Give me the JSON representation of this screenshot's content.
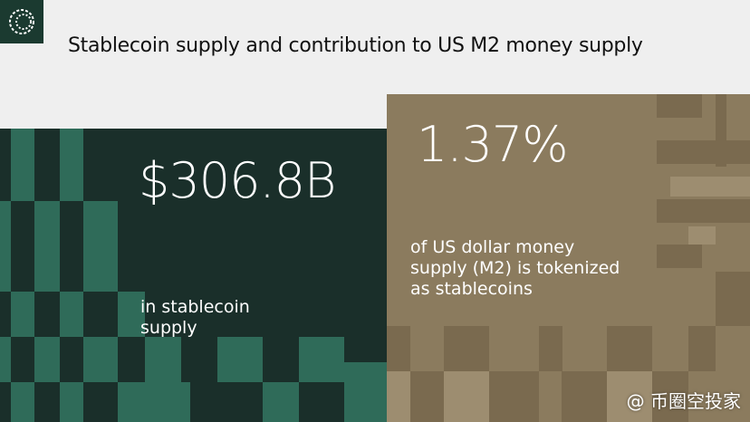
{
  "header": {
    "title": "Stablecoin supply and contribution to US M2 money supply"
  },
  "stats": [
    {
      "value": "$306.8B",
      "caption": [
        "in stablecoin",
        "supply"
      ]
    },
    {
      "value": "1.37%",
      "caption": [
        "of US dollar money",
        "supply (M2) is tokenized",
        "as stablecoins"
      ]
    }
  ],
  "watermark": "@ 币圈空投家"
}
